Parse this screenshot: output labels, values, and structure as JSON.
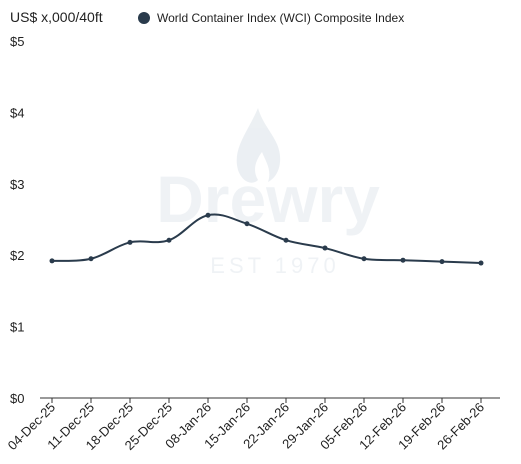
{
  "chart_data": {
    "type": "line",
    "ylabel": "US$ x,000/40ft",
    "categories": [
      "04-Dec-25",
      "11-Dec-25",
      "18-Dec-25",
      "25-Dec-25",
      "08-Jan-26",
      "15-Jan-26",
      "22-Jan-26",
      "29-Jan-26",
      "05-Feb-26",
      "12-Feb-26",
      "19-Feb-26",
      "26-Feb-26"
    ],
    "series": [
      {
        "name": "World Container Index (WCI) Composite Index",
        "values": [
          1.92,
          1.95,
          2.18,
          2.21,
          2.56,
          2.44,
          2.21,
          2.1,
          1.95,
          1.93,
          1.91,
          1.89
        ]
      }
    ],
    "ylim": [
      0,
      5
    ],
    "yticks": [
      0,
      1,
      2,
      3,
      4,
      5
    ],
    "ytick_labels": [
      "$0",
      "$1",
      "$2",
      "$3",
      "$4",
      "$5"
    ],
    "grid": false,
    "legend_position": "top",
    "series_color": "#2a3b4c",
    "watermark": {
      "brand": "Drewry",
      "tagline": "EST 1970"
    }
  }
}
